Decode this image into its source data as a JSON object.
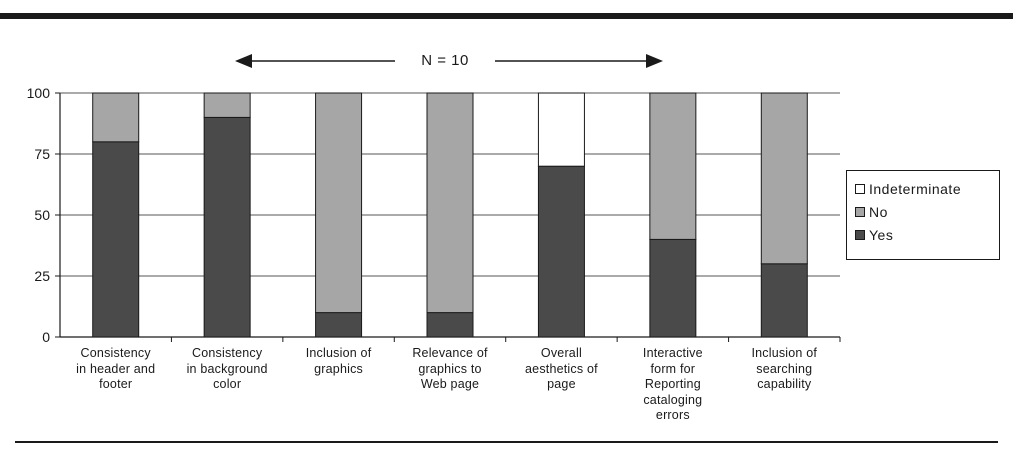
{
  "chart_data": {
    "type": "bar",
    "stacked": true,
    "annotation": "N = 10",
    "categories": [
      "Consistency\nin header and\nfooter",
      "Consistency\nin background\ncolor",
      "Inclusion of\ngraphics",
      "Relevance of\ngraphics to\nWeb page",
      "Overall\naesthetics of\npage",
      "Interactive\nform for\nReporting\ncataloging\nerrors",
      "Inclusion of\nsearching\ncapability"
    ],
    "series": [
      {
        "name": "Yes",
        "color": "#4a4a4a",
        "values": [
          80,
          90,
          10,
          10,
          70,
          40,
          30
        ]
      },
      {
        "name": "No",
        "color": "#a6a6a6",
        "values": [
          20,
          10,
          90,
          90,
          0,
          60,
          70
        ]
      },
      {
        "name": "Indeterminate",
        "color": "#ffffff",
        "values": [
          0,
          0,
          0,
          0,
          30,
          0,
          0
        ]
      }
    ],
    "yticks": [
      "0",
      "25",
      "50",
      "75",
      "100"
    ],
    "ylim": [
      0,
      100
    ],
    "grid": true,
    "legend_position": "right",
    "legend_order": [
      "Indeterminate",
      "No",
      "Yes"
    ]
  }
}
